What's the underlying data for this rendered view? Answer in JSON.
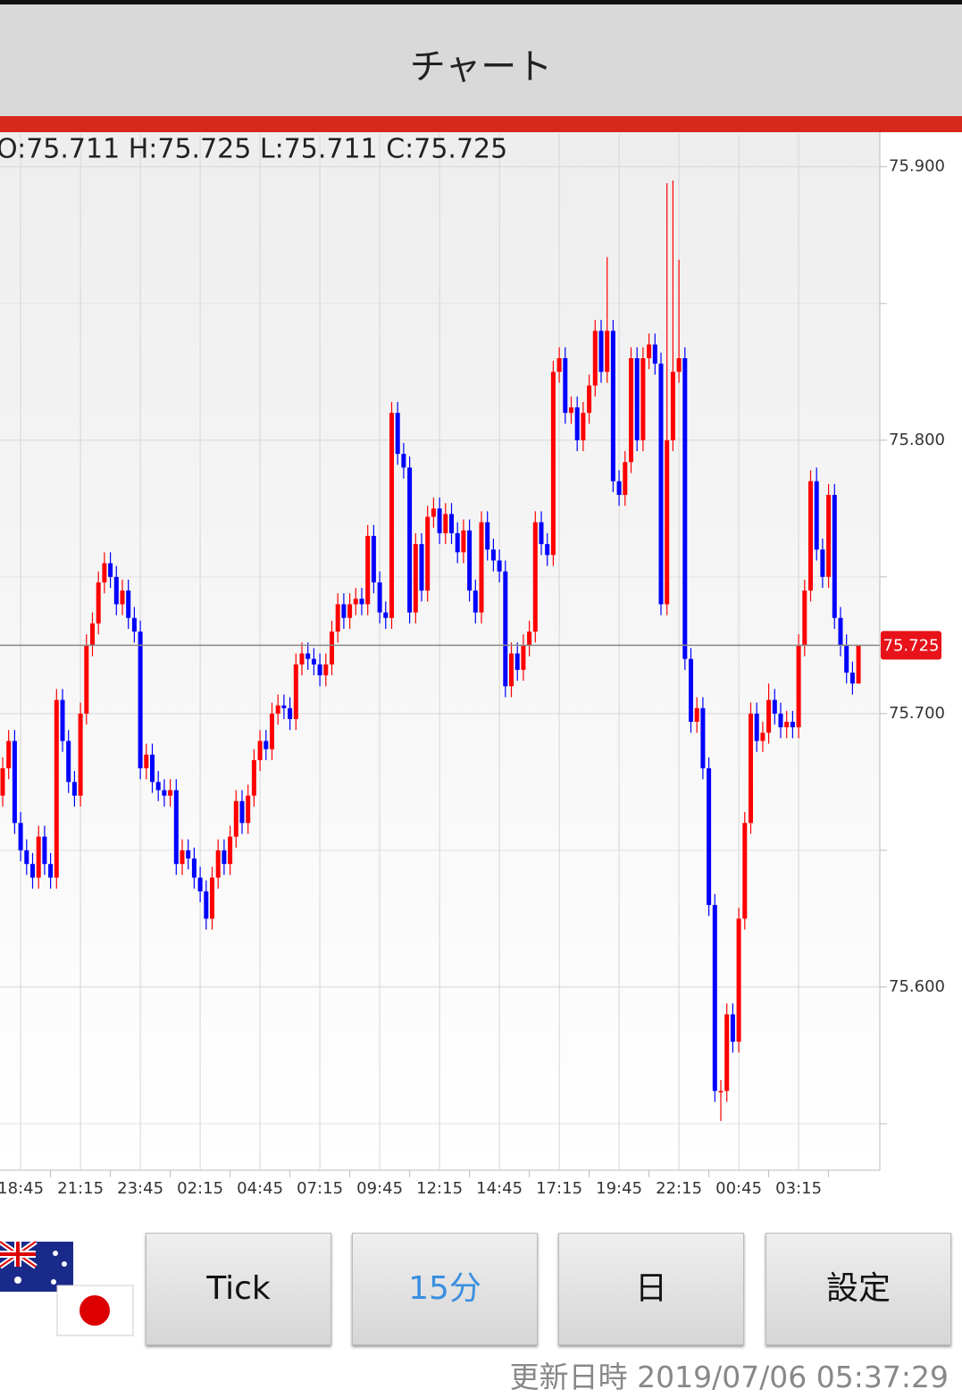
{
  "header": {
    "title": "チャート"
  },
  "chart_data": {
    "type": "candlestick",
    "ohlc_label": "O:75.711 H:75.725 L:75.711 C:75.725",
    "categories": [
      null,
      null,
      null,
      "18:45",
      null,
      null,
      null,
      null,
      null,
      null,
      null,
      null,
      null,
      "21:15",
      null,
      null,
      null,
      null,
      null,
      null,
      null,
      null,
      null,
      "23:45",
      null,
      null,
      null,
      null,
      null,
      null,
      null,
      null,
      null,
      "02:15",
      null,
      null,
      null,
      null,
      null,
      null,
      null,
      null,
      null,
      "04:45",
      null,
      null,
      null,
      null,
      null,
      null,
      null,
      null,
      null,
      "07:15",
      null,
      null,
      null,
      null,
      null,
      null,
      null,
      null,
      null,
      "09:45",
      null,
      null,
      null,
      null,
      null,
      null,
      null,
      null,
      null,
      "12:15",
      null,
      null,
      null,
      null,
      null,
      null,
      null,
      null,
      null,
      "14:45",
      null,
      null,
      null,
      null,
      null,
      null,
      null,
      null,
      null,
      "17:15",
      null,
      null,
      null,
      null,
      null,
      null,
      null,
      null,
      null,
      "19:45",
      null,
      null,
      null,
      null,
      null,
      null,
      null,
      null,
      null,
      "22:15",
      null,
      null,
      null,
      null,
      null,
      null,
      null,
      null,
      null,
      "00:45",
      null,
      null,
      null,
      null,
      null,
      null,
      null,
      null,
      null,
      "03:15",
      null,
      null,
      null,
      null,
      null,
      null,
      null,
      null,
      null,
      null
    ],
    "open": [
      75.67,
      75.68,
      75.69,
      75.66,
      75.65,
      75.645,
      75.64,
      75.655,
      75.645,
      75.64,
      75.705,
      75.69,
      75.675,
      75.67,
      75.7,
      75.725,
      75.733,
      75.748,
      75.755,
      75.75,
      75.74,
      75.745,
      75.735,
      75.73,
      75.68,
      75.685,
      75.675,
      75.672,
      75.67,
      75.672,
      75.645,
      75.65,
      75.647,
      75.64,
      75.635,
      75.625,
      75.64,
      75.65,
      75.645,
      75.655,
      75.668,
      75.66,
      75.67,
      75.683,
      75.69,
      75.687,
      75.7,
      75.703,
      75.702,
      75.698,
      75.718,
      75.722,
      75.72,
      75.718,
      75.714,
      75.718,
      75.73,
      75.74,
      75.735,
      75.74,
      75.742,
      75.74,
      75.765,
      75.748,
      75.737,
      75.735,
      75.81,
      75.795,
      75.79,
      75.737,
      75.762,
      75.745,
      75.772,
      75.775,
      75.766,
      75.773,
      75.766,
      75.759,
      75.767,
      75.745,
      75.737,
      75.77,
      75.76,
      75.756,
      75.752,
      75.71,
      75.722,
      75.716,
      75.725,
      75.73,
      75.77,
      75.762,
      75.758,
      75.825,
      75.83,
      75.81,
      75.812,
      75.8,
      75.81,
      75.82,
      75.84,
      75.825,
      75.84,
      75.785,
      75.78,
      75.792,
      75.83,
      75.8,
      75.83,
      75.835,
      75.828,
      75.74,
      75.8,
      75.825,
      75.83,
      75.72,
      75.697,
      75.702,
      75.68,
      75.63,
      75.562,
      75.562,
      75.59,
      75.58,
      75.625,
      75.66,
      75.7,
      75.69,
      75.693,
      75.705,
      75.7,
      75.695,
      75.697,
      75.695,
      75.725,
      75.745,
      75.785,
      75.76,
      75.75,
      75.78,
      75.735,
      75.725,
      75.715,
      75.711
    ],
    "high": [
      75.684,
      75.694,
      75.694,
      75.664,
      75.654,
      75.649,
      75.659,
      75.659,
      75.649,
      75.709,
      75.709,
      75.694,
      75.679,
      75.704,
      75.729,
      75.737,
      75.752,
      75.759,
      75.759,
      75.754,
      75.749,
      75.749,
      75.739,
      75.734,
      75.689,
      75.689,
      75.679,
      75.676,
      75.676,
      75.676,
      75.654,
      75.654,
      75.651,
      75.644,
      75.639,
      75.644,
      75.654,
      75.654,
      75.659,
      75.672,
      75.672,
      75.674,
      75.687,
      75.694,
      75.694,
      75.704,
      75.707,
      75.707,
      75.706,
      75.722,
      75.726,
      75.726,
      75.724,
      75.722,
      75.722,
      75.734,
      75.744,
      75.744,
      75.744,
      75.746,
      75.746,
      75.769,
      75.769,
      75.752,
      75.741,
      75.814,
      75.814,
      75.799,
      75.794,
      75.766,
      75.766,
      75.776,
      75.779,
      75.779,
      75.777,
      75.777,
      75.77,
      75.771,
      75.771,
      75.749,
      75.774,
      75.774,
      75.764,
      75.76,
      75.756,
      75.726,
      75.726,
      75.729,
      75.734,
      75.774,
      75.774,
      75.766,
      75.829,
      75.834,
      75.834,
      75.816,
      75.816,
      75.814,
      75.824,
      75.844,
      75.844,
      75.867,
      75.844,
      75.789,
      75.796,
      75.834,
      75.834,
      75.834,
      75.839,
      75.839,
      75.832,
      75.894,
      75.895,
      75.866,
      75.834,
      75.724,
      75.706,
      75.706,
      75.684,
      75.634,
      75.566,
      75.594,
      75.594,
      75.629,
      75.664,
      75.704,
      75.704,
      75.697,
      75.711,
      75.709,
      75.704,
      75.701,
      75.701,
      75.729,
      75.749,
      75.789,
      75.79,
      75.764,
      75.784,
      75.784,
      75.739,
      75.729,
      75.719,
      75.725
    ],
    "low": [
      75.666,
      75.676,
      75.656,
      75.646,
      75.641,
      75.636,
      75.636,
      75.641,
      75.636,
      75.636,
      75.686,
      75.671,
      75.666,
      75.666,
      75.696,
      75.721,
      75.729,
      75.744,
      75.746,
      75.736,
      75.736,
      75.731,
      75.726,
      75.676,
      75.676,
      75.671,
      75.668,
      75.666,
      75.666,
      75.641,
      75.641,
      75.643,
      75.636,
      75.631,
      75.621,
      75.621,
      75.636,
      75.641,
      75.641,
      75.651,
      75.656,
      75.656,
      75.666,
      75.679,
      75.683,
      75.683,
      75.696,
      75.698,
      75.694,
      75.694,
      75.714,
      75.716,
      75.714,
      75.71,
      75.71,
      75.714,
      75.726,
      75.731,
      75.731,
      75.736,
      75.736,
      75.736,
      75.744,
      75.733,
      75.731,
      75.731,
      75.791,
      75.786,
      75.733,
      75.733,
      75.741,
      75.741,
      75.768,
      75.762,
      75.762,
      75.762,
      75.755,
      75.755,
      75.741,
      75.733,
      75.733,
      75.756,
      75.752,
      75.748,
      75.706,
      75.706,
      75.712,
      75.712,
      75.721,
      75.726,
      75.758,
      75.754,
      75.754,
      75.821,
      75.806,
      75.806,
      75.796,
      75.796,
      75.806,
      75.816,
      75.821,
      75.821,
      75.781,
      75.776,
      75.776,
      75.788,
      75.796,
      75.796,
      75.826,
      75.824,
      75.736,
      75.736,
      75.796,
      75.821,
      75.716,
      75.693,
      75.693,
      75.676,
      75.626,
      75.558,
      75.551,
      75.558,
      75.576,
      75.576,
      75.621,
      75.656,
      75.686,
      75.686,
      75.689,
      75.696,
      75.691,
      75.691,
      75.691,
      75.691,
      75.721,
      75.741,
      75.756,
      75.746,
      75.746,
      75.731,
      75.721,
      75.711,
      75.707,
      75.711
    ],
    "close": [
      75.68,
      75.69,
      75.66,
      75.65,
      75.645,
      75.64,
      75.655,
      75.645,
      75.64,
      75.705,
      75.69,
      75.675,
      75.67,
      75.7,
      75.725,
      75.733,
      75.748,
      75.755,
      75.75,
      75.74,
      75.745,
      75.735,
      75.73,
      75.68,
      75.685,
      75.675,
      75.672,
      75.67,
      75.672,
      75.645,
      75.65,
      75.647,
      75.64,
      75.635,
      75.625,
      75.64,
      75.65,
      75.645,
      75.655,
      75.668,
      75.66,
      75.67,
      75.683,
      75.69,
      75.687,
      75.7,
      75.703,
      75.702,
      75.698,
      75.718,
      75.722,
      75.72,
      75.718,
      75.714,
      75.718,
      75.73,
      75.74,
      75.735,
      75.74,
      75.742,
      75.74,
      75.765,
      75.748,
      75.737,
      75.735,
      75.81,
      75.795,
      75.79,
      75.737,
      75.762,
      75.745,
      75.772,
      75.775,
      75.766,
      75.773,
      75.766,
      75.759,
      75.767,
      75.745,
      75.737,
      75.77,
      75.76,
      75.756,
      75.752,
      75.71,
      75.722,
      75.716,
      75.725,
      75.73,
      75.77,
      75.762,
      75.758,
      75.825,
      75.83,
      75.81,
      75.812,
      75.8,
      75.81,
      75.82,
      75.84,
      75.825,
      75.84,
      75.785,
      75.78,
      75.792,
      75.83,
      75.8,
      75.83,
      75.835,
      75.828,
      75.74,
      75.8,
      75.825,
      75.83,
      75.72,
      75.697,
      75.702,
      75.68,
      75.63,
      75.562,
      75.562,
      75.59,
      75.58,
      75.625,
      75.66,
      75.7,
      75.69,
      75.693,
      75.705,
      75.7,
      75.695,
      75.697,
      75.695,
      75.725,
      75.745,
      75.785,
      75.76,
      75.75,
      75.78,
      75.735,
      75.725,
      75.715,
      75.711,
      75.725
    ],
    "up_color": "#ff0000",
    "down_color": "#0000ff",
    "ylim": [
      75.533,
      75.912
    ],
    "yticks": [
      {
        "value": 75.6,
        "label": "75.600"
      },
      {
        "value": 75.7,
        "label": "75.700"
      },
      {
        "value": 75.8,
        "label": "75.800"
      },
      {
        "value": 75.9,
        "label": "75.900"
      }
    ],
    "yminor": [
      75.55,
      75.65,
      75.75,
      75.85
    ],
    "current_price": {
      "value": 75.725,
      "label": "75.725"
    },
    "grid": true
  },
  "buttons": [
    "Tick",
    "15分",
    "日",
    "設定"
  ],
  "footer": {
    "updated": "更新日時 2019/07/06 05:37:29"
  }
}
